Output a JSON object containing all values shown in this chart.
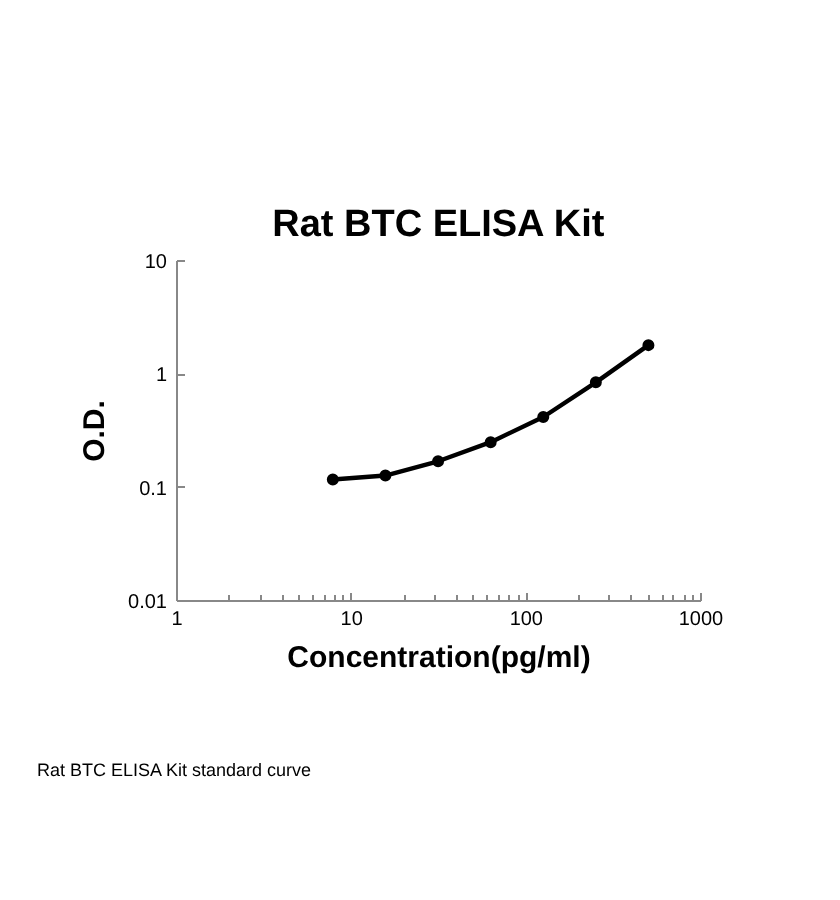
{
  "chart_data": {
    "type": "line",
    "title": "Rat BTC ELISA Kit",
    "xlabel": "Concentration(pg/ml)",
    "ylabel": "O.D.",
    "x": [
      7.8,
      15.6,
      31.25,
      62.5,
      125,
      250,
      500
    ],
    "series": [
      {
        "color": "#000000",
        "values": [
          0.118,
          0.128,
          0.171,
          0.252,
          0.42,
          0.85,
          1.81
        ]
      }
    ],
    "log": "xy",
    "xlim": [
      1,
      1000
    ],
    "ylim": [
      0.01,
      10
    ],
    "xticks": [
      1,
      10,
      100,
      1000
    ],
    "yticks": [
      0.01,
      0.1,
      1,
      10
    ],
    "marker": "circle",
    "grid": false,
    "annotations": [
      "Rat BTC ELISA Kit standard curve"
    ]
  }
}
